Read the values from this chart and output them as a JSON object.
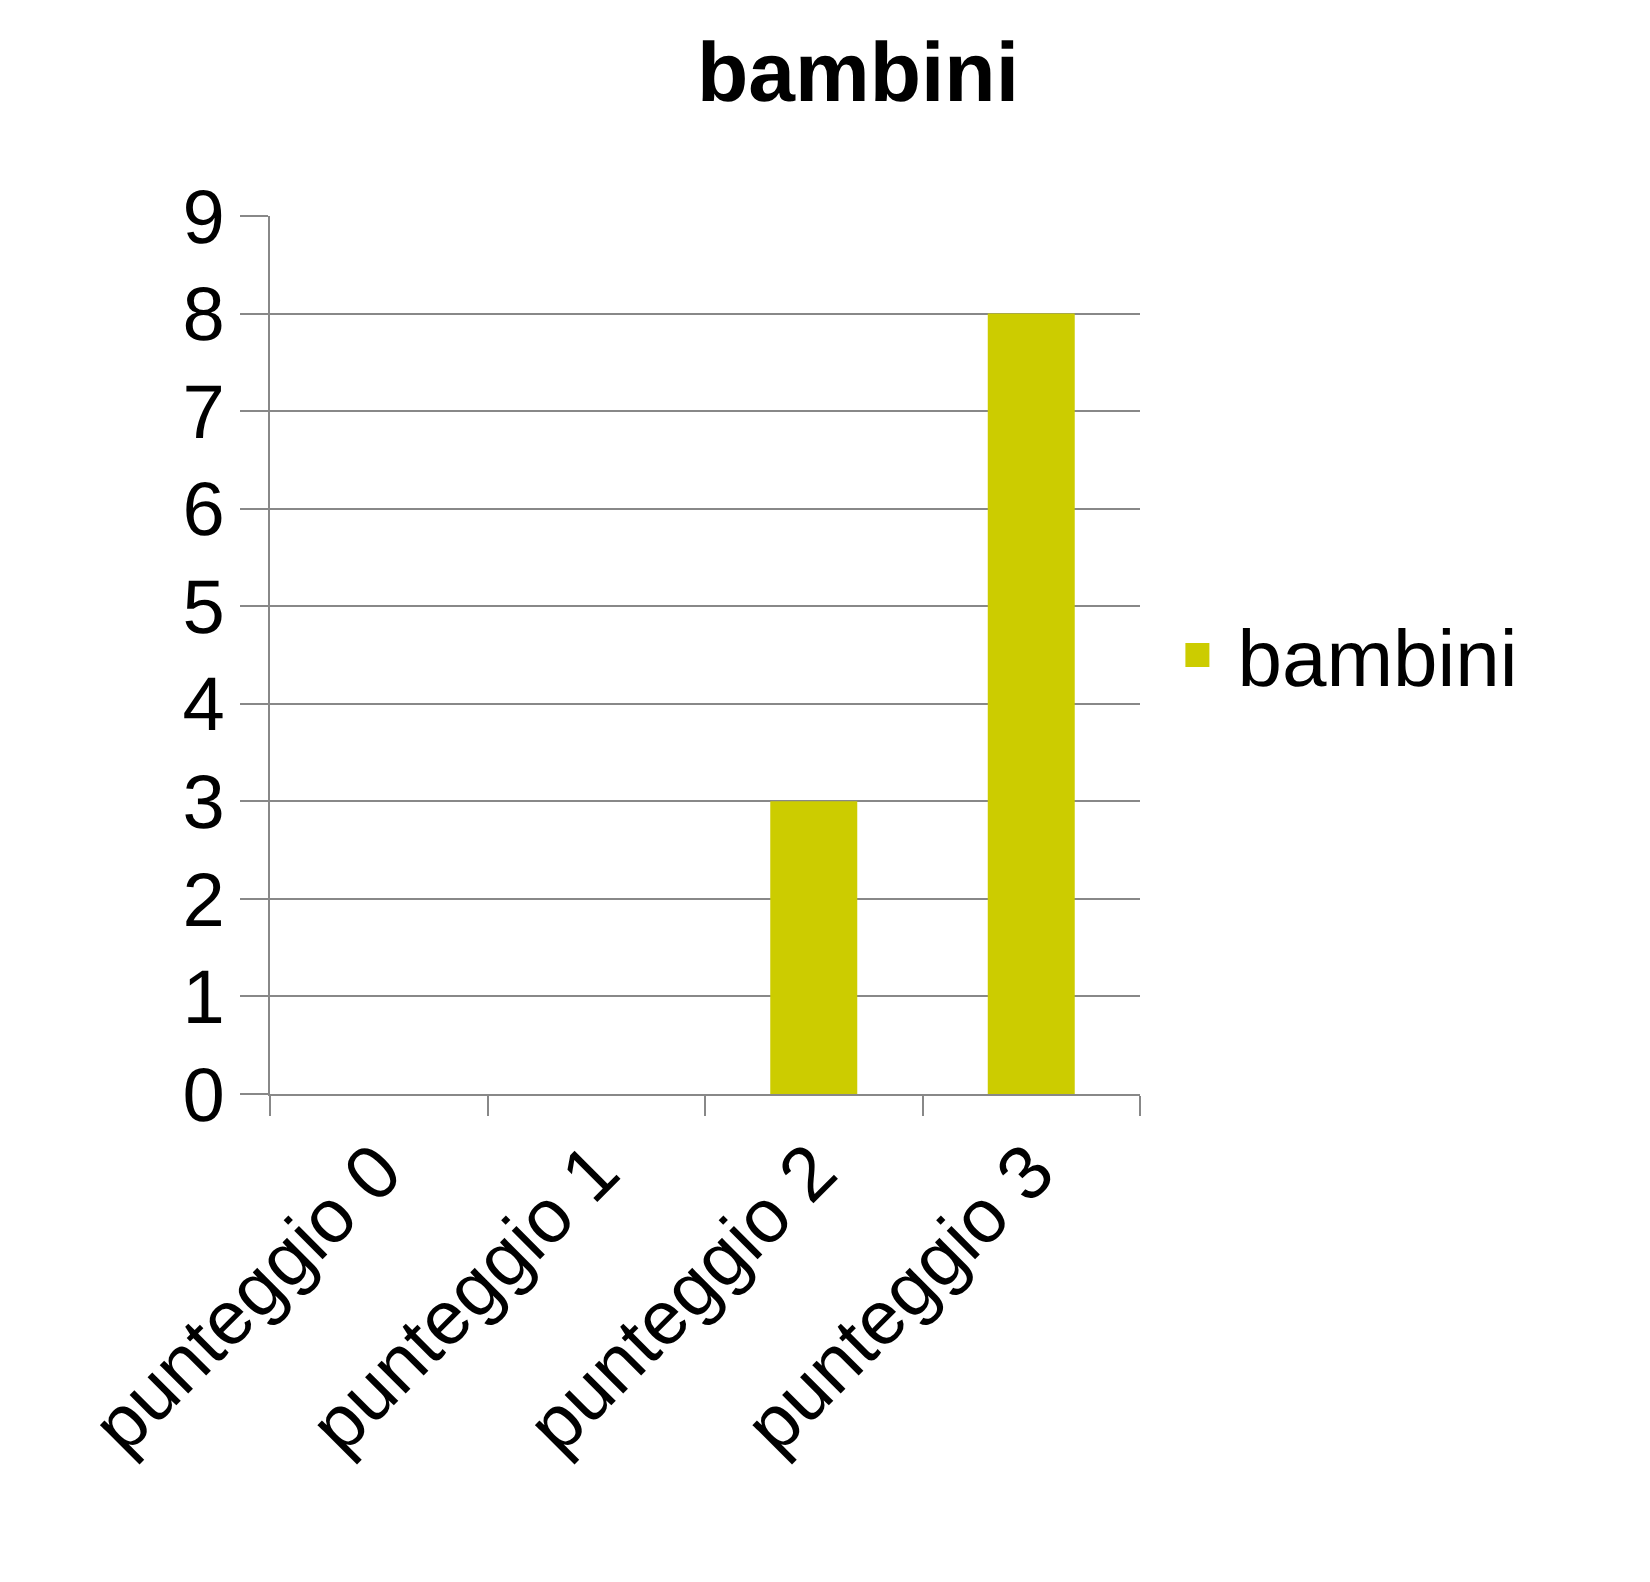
{
  "chart_data": {
    "type": "bar",
    "title": "bambini",
    "categories": [
      "punteggio 0",
      "punteggio 1",
      "punteggio 2",
      "punteggio 3"
    ],
    "series": [
      {
        "name": "bambini",
        "color": "#cccc00",
        "values": [
          0,
          0,
          3,
          8
        ]
      }
    ],
    "ylim": [
      0,
      9
    ],
    "yticks": [
      0,
      1,
      2,
      3,
      4,
      5,
      6,
      7,
      8,
      9
    ],
    "grid": "y",
    "legend": "right"
  }
}
